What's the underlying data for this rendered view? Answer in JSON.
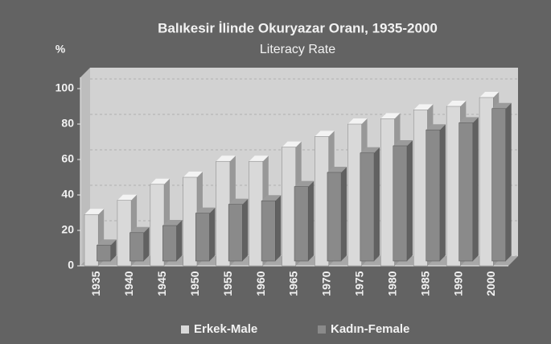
{
  "chart_data": {
    "type": "bar3d",
    "title": "Balıkesir İlinde Okuryazar Oranı, 1935-2000",
    "subtitle": "Literacy Rate",
    "y_label": "%",
    "categories": [
      "1935",
      "1940",
      "1945",
      "1950",
      "1955",
      "1960",
      "1965",
      "1970",
      "1975",
      "1980",
      "1985",
      "1990",
      "2000"
    ],
    "series": [
      {
        "name": "Erkek-Male",
        "color": "#d9d9d9",
        "values": [
          29,
          37,
          46,
          50,
          59,
          59,
          67,
          73,
          80,
          83,
          88,
          90,
          95
        ]
      },
      {
        "name": "Kadın-Female",
        "color": "#8a8a8a",
        "values": [
          9,
          16,
          20,
          27,
          32,
          34,
          42,
          50,
          61,
          65,
          74,
          78,
          86
        ]
      }
    ],
    "ylim": [
      0,
      100
    ],
    "yticks": [
      0,
      20,
      40,
      60,
      80,
      100
    ],
    "grid": true,
    "legend": "bottom"
  }
}
